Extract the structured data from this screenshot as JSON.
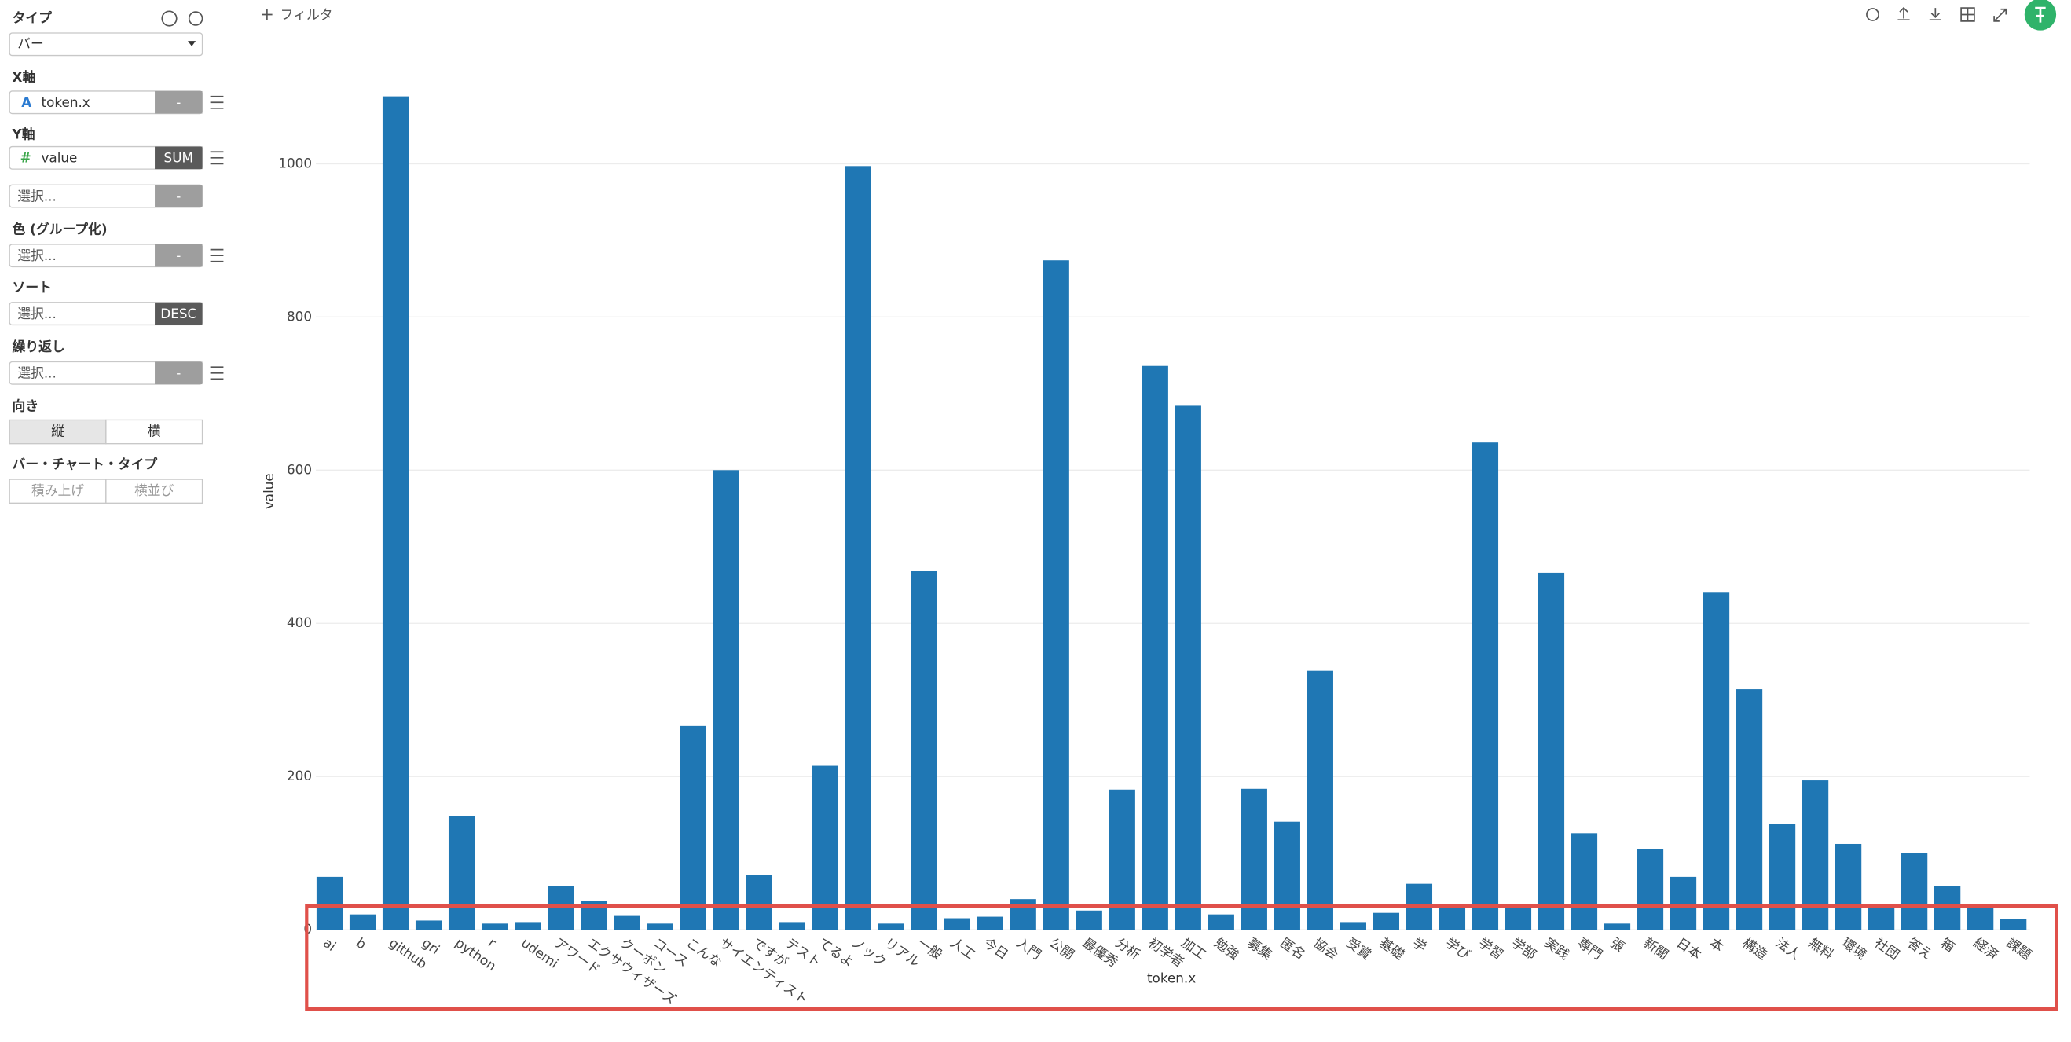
{
  "sidebar": {
    "type_label": "タイプ",
    "type_value": "バー",
    "x_label": "X軸",
    "x_icon": "A",
    "x_field": "token.x",
    "x_agg": "-",
    "y_label": "Y軸",
    "y_icon": "#",
    "y_field": "value",
    "y_agg": "SUM",
    "extra_select": "選択...",
    "extra_agg": "-",
    "color_label": "色 (グループ化)",
    "color_select": "選択...",
    "color_agg": "-",
    "sort_label": "ソート",
    "sort_select": "選択...",
    "sort_order": "DESC",
    "repeat_label": "繰り返し",
    "repeat_select": "選択...",
    "repeat_agg": "-",
    "orientation_label": "向き",
    "orientation_options": [
      "縦",
      "横"
    ],
    "bar_type_label": "バー・チャート・タイプ",
    "bar_type_options": [
      "積み上げ",
      "横並び"
    ]
  },
  "toolbar": {
    "filter": "フィルタ"
  },
  "chart_data": {
    "type": "bar",
    "xlabel": "token.x",
    "ylabel": "value",
    "color": "#1f77b4",
    "grid": true,
    "categories": [
      "ai",
      "b",
      "github",
      "gri",
      "python",
      "r",
      "udemi",
      "アワード",
      "エクサウィザーズ",
      "クーポン",
      "コース",
      "こんな",
      "サイエンティスト",
      "ですが",
      "テスト",
      "てるよ",
      "ノック",
      "リアル",
      "一般",
      "人工",
      "今日",
      "入門",
      "公開",
      "最優秀",
      "分析",
      "初学者",
      "加工",
      "勉強",
      "募集",
      "匿名",
      "協会",
      "受賞",
      "基礎",
      "学",
      "学び",
      "学習",
      "学部",
      "実践",
      "専門",
      "張",
      "新聞",
      "日本",
      "本",
      "構造",
      "法人",
      "無料",
      "環境",
      "社団",
      "答え",
      "箱",
      "経済",
      "課題"
    ],
    "values": [
      69,
      20,
      1088,
      12,
      148,
      8,
      10,
      57,
      38,
      18,
      8,
      266,
      600,
      71,
      10,
      214,
      997,
      8,
      469,
      15,
      17,
      40,
      874,
      25,
      183,
      736,
      684,
      20,
      184,
      141,
      338,
      10,
      22,
      60,
      34,
      636,
      28,
      466,
      126,
      8,
      105,
      69,
      441,
      314,
      138,
      195,
      112,
      28,
      100,
      57,
      28,
      14
    ],
    "ylim": [
      0,
      1100
    ],
    "yticks": [
      0,
      200,
      400,
      600,
      800,
      1000
    ]
  }
}
